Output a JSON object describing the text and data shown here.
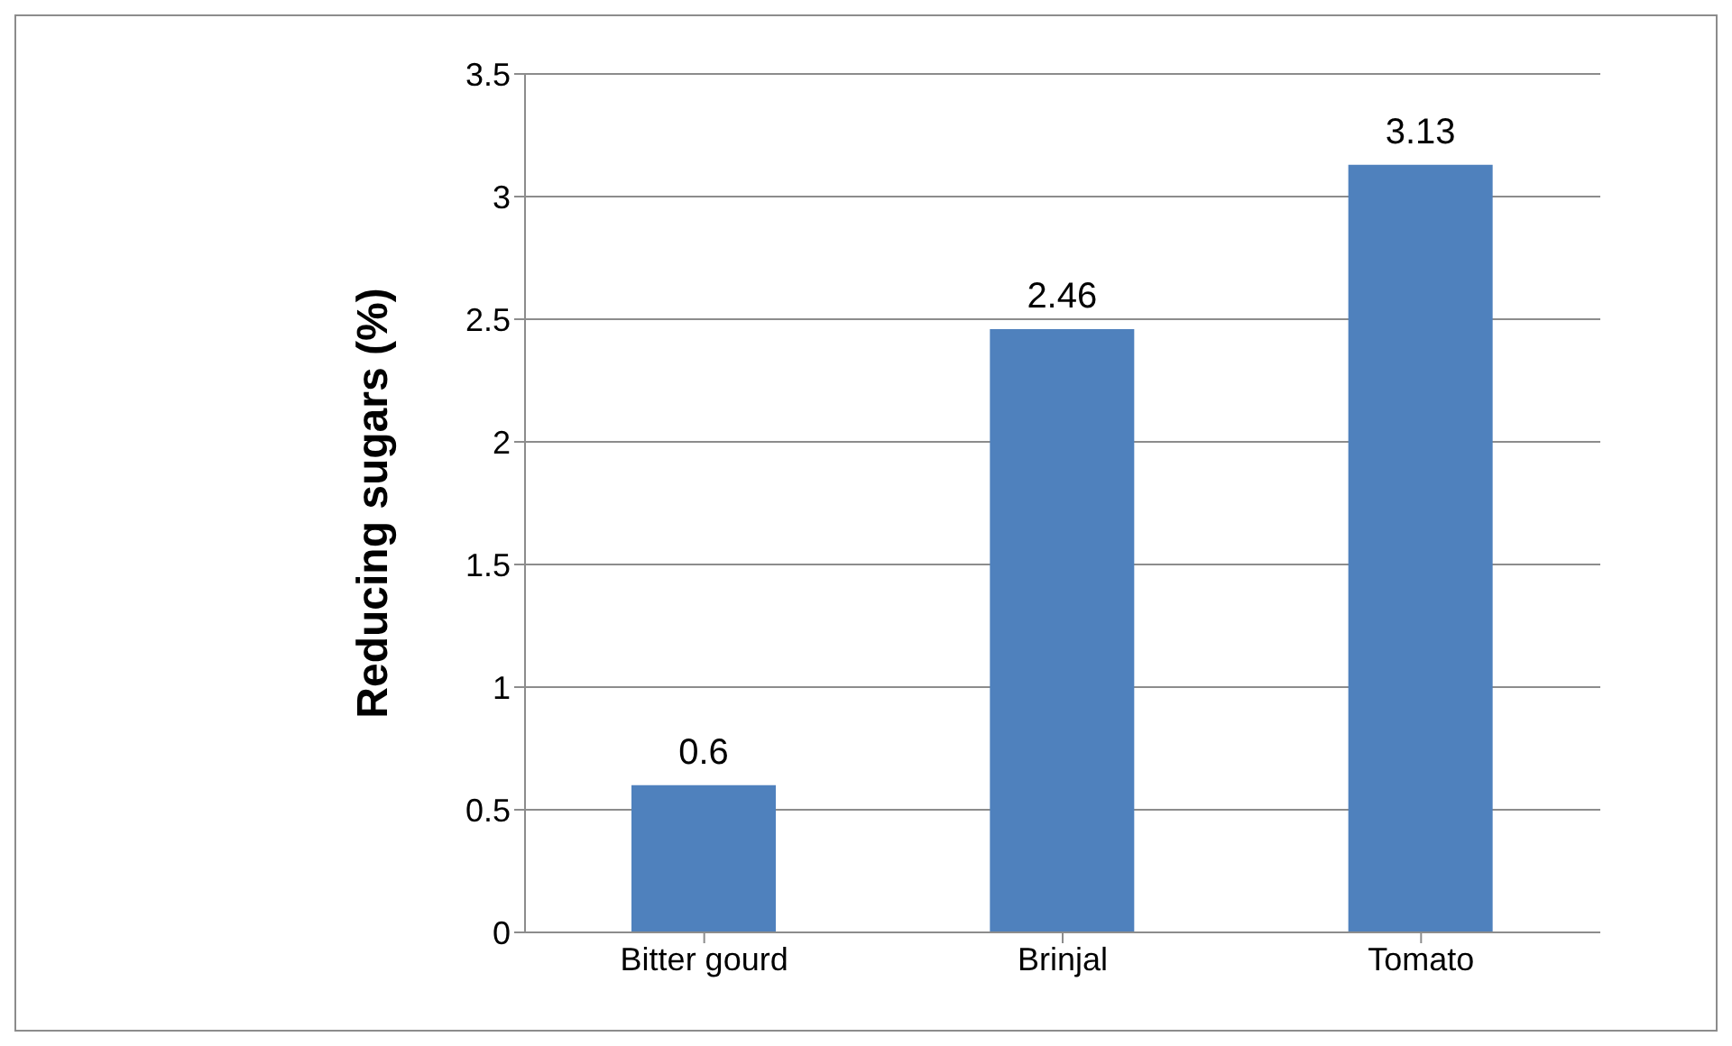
{
  "chart_data": {
    "type": "bar",
    "ylabel": "Reducing sugars (%)",
    "categories": [
      "Bitter gourd",
      "Brinjal",
      "Tomato"
    ],
    "values": [
      0.6,
      2.46,
      3.13
    ],
    "color": "#4f81bd",
    "data_labels": true,
    "ylim": [
      0,
      3.5
    ],
    "yticks": [
      0,
      0.5,
      1,
      1.5,
      2,
      2.5,
      3,
      3.5
    ],
    "grid": "y"
  }
}
